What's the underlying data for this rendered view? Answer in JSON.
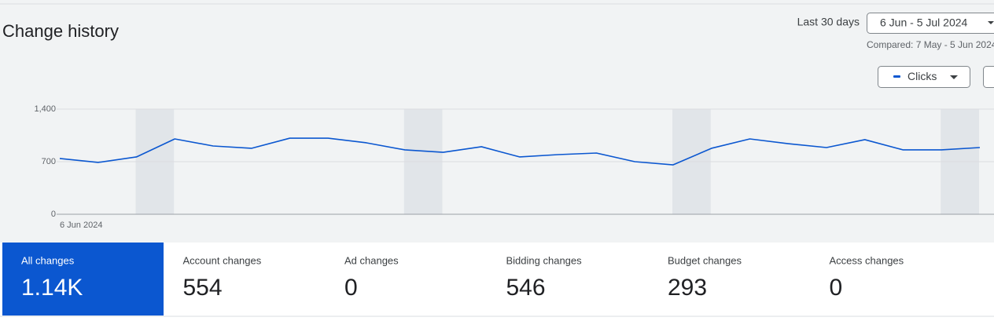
{
  "header": {
    "title": "Change history",
    "range_label": "Last 30 days",
    "date_range": "6 Jun - 5 Jul 2024",
    "compared": "Compared: 7 May - 5 Jun 2024"
  },
  "chart_data": {
    "type": "line",
    "categories": [
      "6 Jun 2024",
      null,
      null,
      null,
      null,
      null,
      null,
      null,
      null,
      null,
      null,
      null,
      null,
      null,
      null,
      null,
      null,
      null,
      null,
      null,
      null,
      null,
      null,
      null,
      null
    ],
    "series": [
      {
        "name": "Clicks",
        "color": "#0b57d0",
        "values": [
          742,
          690,
          763,
          1003,
          909,
          878,
          1013,
          1013,
          951,
          857,
          825,
          899,
          763,
          794,
          815,
          700,
          658,
          878,
          1003,
          940,
          888,
          993,
          857,
          857,
          888
        ]
      }
    ],
    "ylim": [
      0,
      1400
    ],
    "yticks": [
      0,
      700,
      {
        "value": 1400,
        "label": "1,400"
      }
    ],
    "grid": true
  },
  "stats": [
    {
      "label": "All changes",
      "value": "1.14K"
    },
    {
      "label": "Account changes",
      "value": "554"
    },
    {
      "label": "Ad changes",
      "value": "0"
    },
    {
      "label": "Bidding changes",
      "value": "546"
    },
    {
      "label": "Budget changes",
      "value": "293"
    },
    {
      "label": "Access changes",
      "value": "0"
    }
  ]
}
